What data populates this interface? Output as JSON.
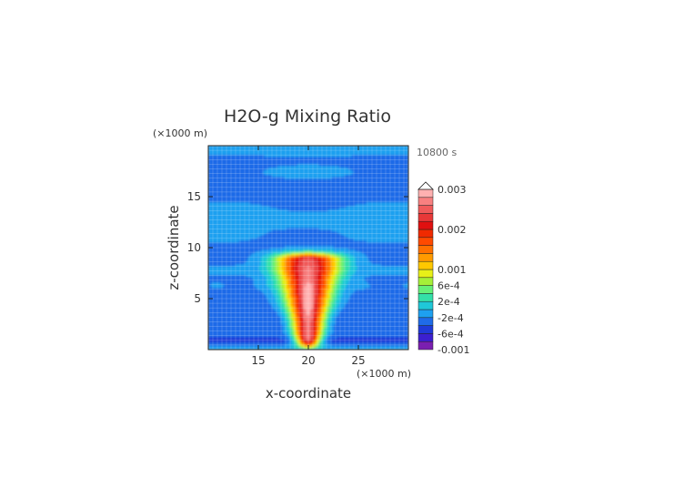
{
  "chart_data": {
    "type": "heatmap",
    "title": "H2O-g Mixing Ratio",
    "time_label": "10800 s",
    "xlabel": "x-coordinate",
    "ylabel": "z-coordinate",
    "x_unit": "(×1000 m)",
    "y_unit": "(×1000 m)",
    "xlim": [
      10,
      30
    ],
    "ylim": [
      0,
      20
    ],
    "x_ticks": [
      15,
      20,
      25
    ],
    "y_ticks": [
      5,
      10,
      15
    ],
    "colorbar": {
      "levels": [
        -0.001,
        -0.0008,
        -0.0006,
        -0.0004,
        -0.0002,
        0,
        0.0002,
        0.0004,
        0.0006,
        0.0008,
        0.001,
        0.0012,
        0.0014,
        0.0016,
        0.0018,
        0.002,
        0.0022,
        0.0024,
        0.0026,
        0.0028,
        0.003
      ],
      "colors": [
        "#7a1fb0",
        "#3b1fd0",
        "#1f3ad8",
        "#1f6be8",
        "#1ea0f0",
        "#1fc8d8",
        "#33e0a8",
        "#66f078",
        "#a6f038",
        "#e8f018",
        "#ffc800",
        "#ff9a00",
        "#ff7000",
        "#ff4a00",
        "#f02a00",
        "#e01010",
        "#e83838",
        "#f05a5a",
        "#f88080",
        "#ffb0b0"
      ],
      "labels": [
        "-0.001",
        "-6e-4",
        "-2e-4",
        "2e-4",
        "6e-4",
        "0.001",
        "0.002",
        "0.003"
      ],
      "label_values": [
        -0.001,
        -0.0006,
        -0.0002,
        0.0002,
        0.0006,
        0.001,
        0.002,
        0.003
      ]
    },
    "field_description_values": {
      "upper_level_bands_z": [
        19.5,
        17.5,
        13.5,
        11.0,
        8.0,
        6.5
      ],
      "plume_center_x": 20,
      "plume_top_z": 8.5,
      "plume_max": 0.0026
    }
  }
}
